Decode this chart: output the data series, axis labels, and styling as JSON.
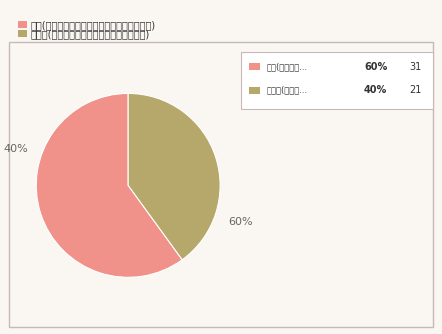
{
  "slices": [
    60,
    40
  ],
  "colors": [
    "#f0918a",
    "#b5a86a"
  ],
  "label1_short": "若髦(髦型のカ...",
  "label2_short": "水無月(三角の...",
  "legend_pct1": "60%",
  "legend_pct2": "40%",
  "legend_count1": "31",
  "legend_count2": "21",
  "header_label1": "若髦(髦型のカステラ生地で求肥を包んだもの)",
  "header_label2": "水無月(三角のういろうに小豆がのったもの)",
  "bg_color": "#faf7f2",
  "border_color": "#c8b8b8",
  "start_angle": 90
}
